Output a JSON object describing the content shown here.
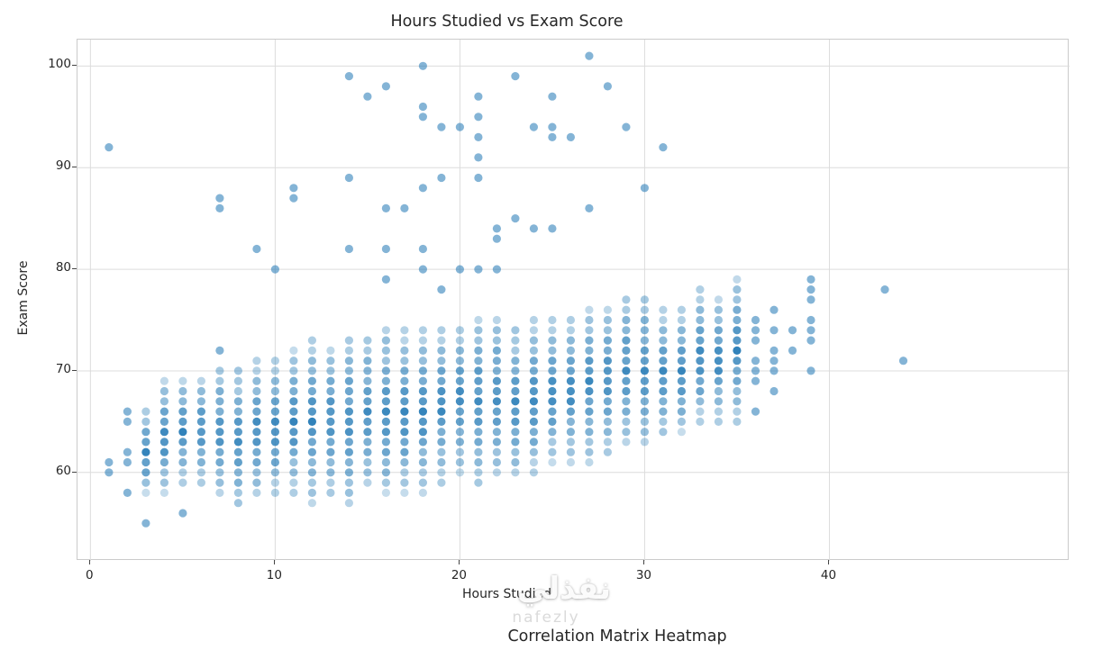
{
  "page": {
    "background": "#ffffff",
    "secondary_title": "Correlation Matrix Heatmap",
    "watermark": {
      "text": "نفذلي",
      "subtext": "nafezly"
    }
  },
  "chart_data": {
    "type": "scatter",
    "title": "Hours Studied vs Exam Score",
    "xlabel": "Hours Studied",
    "ylabel": "Exam Score",
    "x_ticks": [
      0,
      10,
      20,
      30,
      40
    ],
    "y_ticks": [
      60,
      70,
      80,
      90,
      100
    ],
    "xlim": [
      -0.7,
      53.0
    ],
    "ylim": [
      51.3,
      102.6
    ],
    "grid": true,
    "legend": false,
    "marker_color": "#1f77b4",
    "marker_alpha": 0.55,
    "grid_color": "#dcdcdc",
    "spine_color": "#cbcbcb",
    "tick_label_color": "#262626",
    "grid_columns": [
      {
        "x": 3,
        "y_min": 58,
        "y_max": 66
      },
      {
        "x": 4,
        "y_min": 58,
        "y_max": 69
      },
      {
        "x": 5,
        "y_min": 59,
        "y_max": 69
      },
      {
        "x": 6,
        "y_min": 59,
        "y_max": 69
      },
      {
        "x": 7,
        "y_min": 58,
        "y_max": 70
      },
      {
        "x": 8,
        "y_min": 57,
        "y_max": 70
      },
      {
        "x": 9,
        "y_min": 58,
        "y_max": 71
      },
      {
        "x": 10,
        "y_min": 58,
        "y_max": 71
      },
      {
        "x": 11,
        "y_min": 58,
        "y_max": 72
      },
      {
        "x": 12,
        "y_min": 57,
        "y_max": 73
      },
      {
        "x": 13,
        "y_min": 58,
        "y_max": 72
      },
      {
        "x": 14,
        "y_min": 57,
        "y_max": 73
      },
      {
        "x": 15,
        "y_min": 59,
        "y_max": 73
      },
      {
        "x": 16,
        "y_min": 58,
        "y_max": 74
      },
      {
        "x": 17,
        "y_min": 58,
        "y_max": 74
      },
      {
        "x": 18,
        "y_min": 58,
        "y_max": 74
      },
      {
        "x": 19,
        "y_min": 59,
        "y_max": 74
      },
      {
        "x": 20,
        "y_min": 60,
        "y_max": 74
      },
      {
        "x": 21,
        "y_min": 59,
        "y_max": 75
      },
      {
        "x": 22,
        "y_min": 60,
        "y_max": 75
      },
      {
        "x": 23,
        "y_min": 60,
        "y_max": 74
      },
      {
        "x": 24,
        "y_min": 60,
        "y_max": 75
      },
      {
        "x": 25,
        "y_min": 61,
        "y_max": 75
      },
      {
        "x": 26,
        "y_min": 61,
        "y_max": 75
      },
      {
        "x": 27,
        "y_min": 61,
        "y_max": 76
      },
      {
        "x": 28,
        "y_min": 62,
        "y_max": 76
      },
      {
        "x": 29,
        "y_min": 63,
        "y_max": 77
      },
      {
        "x": 30,
        "y_min": 63,
        "y_max": 77
      },
      {
        "x": 31,
        "y_min": 64,
        "y_max": 76
      },
      {
        "x": 32,
        "y_min": 64,
        "y_max": 76
      },
      {
        "x": 33,
        "y_min": 65,
        "y_max": 78
      },
      {
        "x": 34,
        "y_min": 65,
        "y_max": 77
      },
      {
        "x": 35,
        "y_min": 65,
        "y_max": 79
      }
    ],
    "points": [
      [
        1,
        60
      ],
      [
        1,
        61
      ],
      [
        1,
        92
      ],
      [
        2,
        58
      ],
      [
        2,
        61
      ],
      [
        2,
        62
      ],
      [
        2,
        65
      ],
      [
        2,
        66
      ],
      [
        3,
        55
      ],
      [
        5,
        56
      ],
      [
        7,
        72
      ],
      [
        7,
        86
      ],
      [
        7,
        87
      ],
      [
        9,
        82
      ],
      [
        10,
        80
      ],
      [
        11,
        87
      ],
      [
        11,
        88
      ],
      [
        14,
        82
      ],
      [
        14,
        89
      ],
      [
        14,
        99
      ],
      [
        15,
        97
      ],
      [
        16,
        79
      ],
      [
        16,
        82
      ],
      [
        16,
        86
      ],
      [
        16,
        98
      ],
      [
        17,
        86
      ],
      [
        18,
        80
      ],
      [
        18,
        82
      ],
      [
        18,
        88
      ],
      [
        18,
        95
      ],
      [
        18,
        96
      ],
      [
        18,
        100
      ],
      [
        19,
        78
      ],
      [
        19,
        89
      ],
      [
        19,
        94
      ],
      [
        20,
        80
      ],
      [
        20,
        94
      ],
      [
        21,
        80
      ],
      [
        21,
        89
      ],
      [
        21,
        91
      ],
      [
        21,
        93
      ],
      [
        21,
        95
      ],
      [
        21,
        97
      ],
      [
        22,
        80
      ],
      [
        22,
        83
      ],
      [
        22,
        84
      ],
      [
        23,
        85
      ],
      [
        23,
        99
      ],
      [
        24,
        84
      ],
      [
        24,
        94
      ],
      [
        25,
        84
      ],
      [
        25,
        93
      ],
      [
        25,
        94
      ],
      [
        25,
        97
      ],
      [
        26,
        93
      ],
      [
        27,
        86
      ],
      [
        27,
        101
      ],
      [
        28,
        98
      ],
      [
        29,
        94
      ],
      [
        30,
        88
      ],
      [
        31,
        92
      ],
      [
        36,
        66
      ],
      [
        36,
        69
      ],
      [
        36,
        70
      ],
      [
        36,
        71
      ],
      [
        36,
        73
      ],
      [
        36,
        74
      ],
      [
        36,
        75
      ],
      [
        37,
        68
      ],
      [
        37,
        70
      ],
      [
        37,
        71
      ],
      [
        37,
        72
      ],
      [
        37,
        74
      ],
      [
        37,
        76
      ],
      [
        38,
        72
      ],
      [
        38,
        74
      ],
      [
        39,
        70
      ],
      [
        39,
        73
      ],
      [
        39,
        74
      ],
      [
        39,
        75
      ],
      [
        39,
        77
      ],
      [
        39,
        78
      ],
      [
        39,
        79
      ],
      [
        43,
        78
      ],
      [
        44,
        71
      ]
    ]
  }
}
